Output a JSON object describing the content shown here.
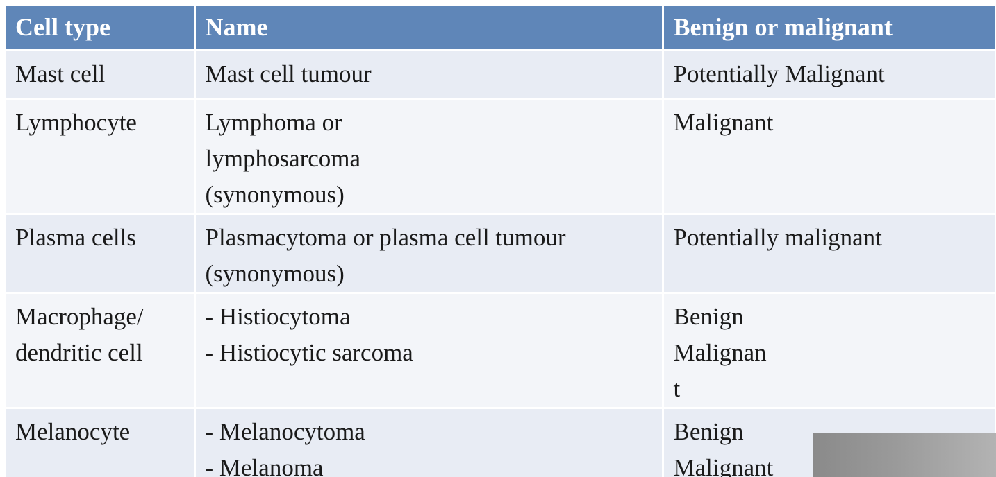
{
  "table": {
    "headers": [
      "Cell type",
      "Name",
      "Benign or malignant"
    ],
    "rows": [
      {
        "cell_type": [
          "Mast cell"
        ],
        "name": [
          "Mast cell tumour"
        ],
        "status": [
          "Potentially Malignant"
        ]
      },
      {
        "cell_type": [
          "Lymphocyte"
        ],
        "name": [
          "Lymphoma or",
          "lymphosarcoma",
          "(synonymous)"
        ],
        "status": [
          "Malignant"
        ]
      },
      {
        "cell_type": [
          "Plasma cells"
        ],
        "name": [
          "Plasmacytoma or plasma cell tumour",
          "(synonymous)"
        ],
        "status": [
          "Potentially malignant"
        ]
      },
      {
        "cell_type": [
          "Macrophage/",
          "dendritic cell"
        ],
        "name": [
          "- Histiocytoma",
          "- Histiocytic sarcoma"
        ],
        "status": [
          "Benign",
          "Malignan",
          "t"
        ]
      },
      {
        "cell_type": [
          "Melanocyte"
        ],
        "name": [
          "- Melanocytoma",
          "- Melanoma"
        ],
        "status": [
          "Benign",
          "Malignant"
        ]
      }
    ]
  },
  "colors": {
    "header_bg": "#5f86b8",
    "row_odd_bg": "#e8ecf4",
    "row_even_bg": "#f3f5f9"
  }
}
